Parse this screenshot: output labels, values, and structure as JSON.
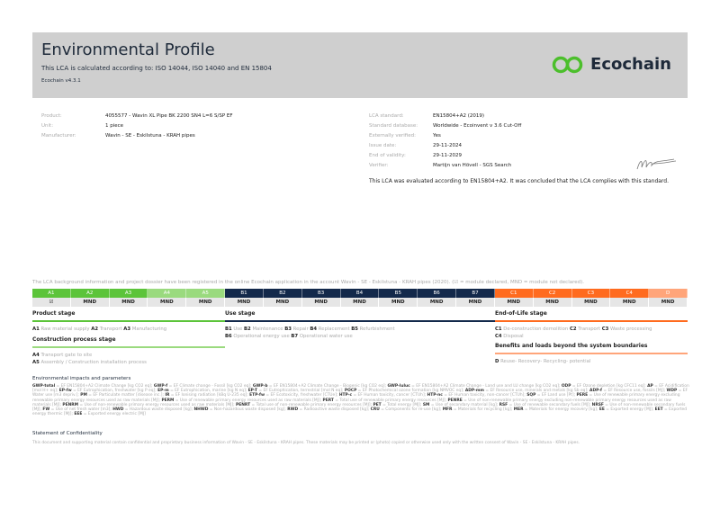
{
  "header": {
    "title": "Environmental Profile",
    "subtitle": "This LCA is calculated according to: ISO 14044, ISO 14040 and EN 15804",
    "version": "Ecochain v4.3.1",
    "logo_text": "Ecochain"
  },
  "product_info": [
    {
      "label": "Product:",
      "value": "4055577 - Wavin XL Pipe BK 2200 SN4 L=6 S/SP EF"
    },
    {
      "label": "Unit:",
      "value": "1 piece"
    },
    {
      "label": "Manufacturer:",
      "value": "Wavin - SE - Eskilstuna - KRAH pipes"
    }
  ],
  "lca_info": [
    {
      "label": "LCA standard:",
      "value": "EN15804+A2 (2019)"
    },
    {
      "label": "Standard database:",
      "value": "Worldwide - Ecoinvent v 3.6 Cut-Off"
    },
    {
      "label": "Externally verified:",
      "value": "Yes"
    },
    {
      "label": "Issue date:",
      "value": "29-11-2024"
    },
    {
      "label": "End of validity:",
      "value": "29-11-2029"
    },
    {
      "label": "Verifier:",
      "value": "Martijn van Hövell - SGS Search"
    }
  ],
  "conclusion": "This LCA was evaluated according to EN15804+A2. It was concluded that the LCA complies with this standard.",
  "note": "The LCA background information and project dossier have been registered in the online Ecochain application in the account Wavin - SE - Eskilstuna - KRAH pipes (2020). (☑ = module declared, MND = module not declared).",
  "colors": {
    "product": "#5cc43a",
    "construction": "#9ada7e",
    "use": "#13294b",
    "eol": "#ff6b1f",
    "d": "#ffa57a"
  },
  "modules": [
    {
      "code": "A1",
      "status": "☑",
      "group": "product"
    },
    {
      "code": "A2",
      "status": "MND",
      "group": "product"
    },
    {
      "code": "A3",
      "status": "MND",
      "group": "product"
    },
    {
      "code": "A4",
      "status": "MND",
      "group": "construction"
    },
    {
      "code": "A5",
      "status": "MND",
      "group": "construction"
    },
    {
      "code": "B1",
      "status": "MND",
      "group": "use"
    },
    {
      "code": "B2",
      "status": "MND",
      "group": "use"
    },
    {
      "code": "B3",
      "status": "MND",
      "group": "use"
    },
    {
      "code": "B4",
      "status": "MND",
      "group": "use"
    },
    {
      "code": "B5",
      "status": "MND",
      "group": "use"
    },
    {
      "code": "B6",
      "status": "MND",
      "group": "use"
    },
    {
      "code": "B7",
      "status": "MND",
      "group": "use"
    },
    {
      "code": "C1",
      "status": "MND",
      "group": "eol"
    },
    {
      "code": "C2",
      "status": "MND",
      "group": "eol"
    },
    {
      "code": "C3",
      "status": "MND",
      "group": "eol"
    },
    {
      "code": "C4",
      "status": "MND",
      "group": "eol"
    },
    {
      "code": "D",
      "status": "MND",
      "group": "d"
    }
  ],
  "stages": {
    "product": {
      "title": "Product stage",
      "items": [
        [
          "A1",
          "Raw material supply"
        ],
        [
          "A2",
          "Transport"
        ],
        [
          "A3",
          "Manufacturing"
        ]
      ]
    },
    "construction": {
      "title": "Construction process stage",
      "items": [
        [
          "A4",
          "Transport gate to site"
        ],
        [
          "A5",
          "Assembly / Construction installation process"
        ]
      ]
    },
    "use": {
      "title": "Use stage",
      "items": [
        [
          "B1",
          "Use"
        ],
        [
          "B2",
          "Maintenance"
        ],
        [
          "B3",
          "Repair"
        ],
        [
          "B4",
          "Replacement"
        ],
        [
          "B5",
          "Refurbishment"
        ],
        [
          "B6",
          "Operational energy use"
        ],
        [
          "B7",
          "Operational water use"
        ]
      ]
    },
    "eol": {
      "title": "End-of-Life stage",
      "items": [
        [
          "C1",
          "De-construction demolition"
        ],
        [
          "C2",
          "Transport"
        ],
        [
          "C3",
          "Waste processing"
        ],
        [
          "C4",
          "Disposal"
        ]
      ]
    },
    "beyond": {
      "title": "Benefits and loads beyond the system boundaries",
      "items": [
        [
          "D",
          "Reuse- Recovery- Recycling- potential"
        ]
      ]
    }
  },
  "glossary_title": "Environmental impacts and parameters",
  "glossary": "GWP-total = EF EN15804+A2 Climate Change [kg CO2 eq]; GWP-f = EF Climate change - Fossil [kg CO2 eq]; GWP-b = EF EN15804+A2 Climate Change - Biogenic [kg CO2 eq]; GWP-luluc = EF EN15804+A2 Climate Change - Land use and LU change [kg CO2 eq]; ODP = EF Ozone depletion [kg CFC11 eq]; AP = EF Acidification [mol H+ eq]; EP-fw = EF Eutrophication, freshwater [kg P eq]; EP-m = EF Eutrophication, marine [kg N eq]; EP-T = EF Eutrophication, terrestrial [mol N eq]; POCP = EF Photochemical ozone formation [kg NMVOC eq]; ADP-mm = EF Resource use, minerals and metals [kg Sb eq]; ADP-f = EF Resource use, fossils [MJ]; WDP = EF Water use [m3 depriv.]; PM = EF Particulate matter [disease inc.]; IR = EF Ionising radiation [kBq U-235 eq]; ETP-fw = EF Ecotoxicity, freshwater [CTUe]; HTP-c = EF Human toxicity, cancer [CTUh]; HTP-nc = EF Human toxicity, non-cancer [CTUh]; SQP = EF Land use [Pt]; PERE = Use of renewable primary energy excluding renewable primary energy resources used as raw materials [MJ]; PERM = Use of renewable primary energy resources used as raw materials [MJ]; PERT = Total use of renewable primary energy resources [MJ]; PENRE = Use of non-renewable primary energy excluding non-renewable primary energy resources used as raw materials [MJ]; PENRM = Use of non-renewable primary energy resources used as raw materials [MJ]; PENRT = Total use of non-renewable primary energy resources [MJ]; PET = Total energy [MJ]; SM = Use of secondary material [kg]; RSF = Use of renewable secondary fuels [MJ]; NRSF = Use of non-renewable secondary fuels [MJ]; FW = Use of net fresh water [m3]; HWD = Hazardous waste disposed [kg]; NHWD = Non-hazardous waste disposed [kg]; RWD = Radioactive waste disposed [kg]; CRU = Components for re-use [kg]; MFR = Materials for recycling [kg]; MER = Materials for energy recovery [kg]; EE = Exported energy [MJ]; EET = Exported energy thermic [MJ]; EEE = Exported energy electric [MJ]",
  "confidentiality_title": "Statement of Confidentiality",
  "confidentiality": "This document and supporting material contain confidential and proprietary business information of Wavin - SE - Eskilstuna - KRAH pipes. These materials may be printed or (photo) copied or otherwise used only with the written consent of Wavin - SE - Eskilstuna - KRAH pipes."
}
